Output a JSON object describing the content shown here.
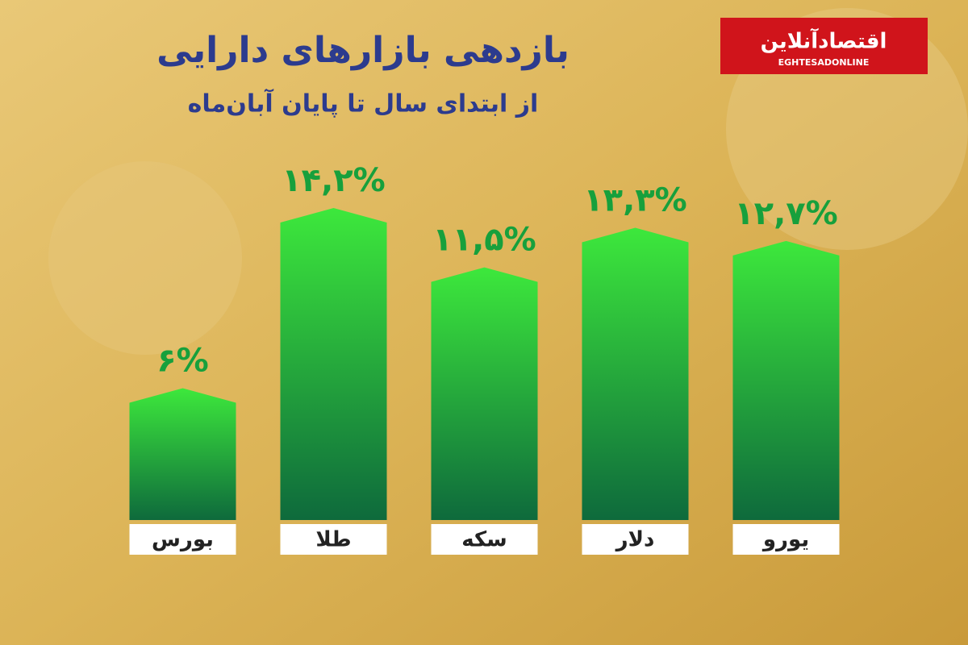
{
  "chart_data": {
    "type": "bar",
    "title": "بازدهی بازارهای دارایی",
    "subtitle": "از ابتدای سال تا پایان آبان‌ماه",
    "source": {
      "name": "اقتصادآنلاین",
      "name_latin": "EGHTESADONLINE"
    },
    "categories": [
      "بورس",
      "طلا",
      "سکه",
      "دلار",
      "یورو"
    ],
    "values": [
      6,
      14.2,
      11.5,
      13.3,
      12.7
    ],
    "value_labels": [
      "۶%",
      "۱۴,۲%",
      "۱۱,۵%",
      "۱۳,۳%",
      "۱۲,۷%"
    ],
    "color": "#22c03a"
  }
}
